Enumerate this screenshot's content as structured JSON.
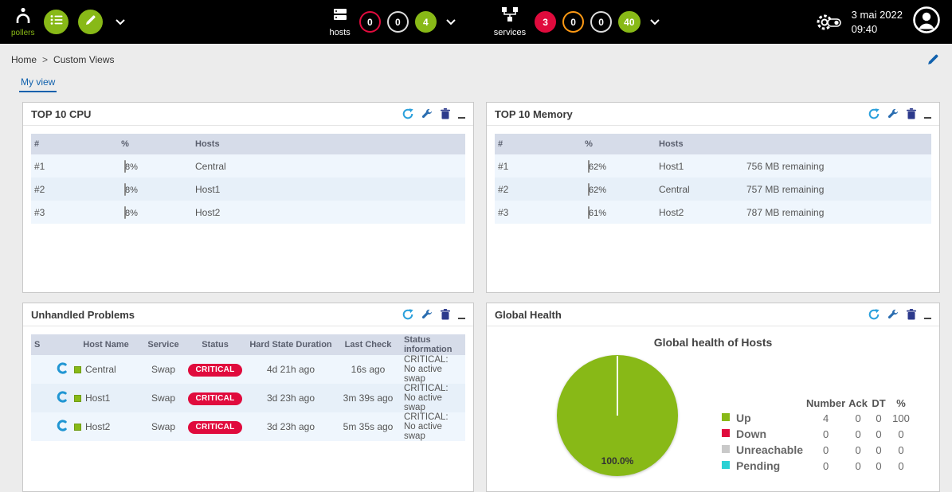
{
  "topbar": {
    "pollers": {
      "label": "pollers"
    },
    "hosts": {
      "label": "hosts",
      "badges": [
        {
          "value": "0",
          "state": "down"
        },
        {
          "value": "0",
          "state": "unreachable"
        },
        {
          "value": "4",
          "state": "up"
        }
      ]
    },
    "services": {
      "label": "services",
      "badges": [
        {
          "value": "3",
          "state": "critical"
        },
        {
          "value": "0",
          "state": "warning"
        },
        {
          "value": "0",
          "state": "unknown"
        },
        {
          "value": "40",
          "state": "ok"
        }
      ]
    },
    "clock": {
      "date": "3 mai 2022",
      "time": "09:40"
    }
  },
  "breadcrumb": {
    "home": "Home",
    "separator": ">",
    "current": "Custom Views"
  },
  "tabs": {
    "my_view": "My view"
  },
  "panels": {
    "top10cpu": {
      "title": "TOP 10 CPU",
      "columns": {
        "rank": "#",
        "percent": "%",
        "hosts": "Hosts"
      },
      "rows": [
        {
          "rank": "#1",
          "label": "8%",
          "value": 8,
          "host": "Central"
        },
        {
          "rank": "#2",
          "label": "8%",
          "value": 8,
          "host": "Host1"
        },
        {
          "rank": "#3",
          "label": "8%",
          "value": 8,
          "host": "Host2"
        }
      ]
    },
    "top10memory": {
      "title": "TOP 10 Memory",
      "columns": {
        "rank": "#",
        "percent": "%",
        "hosts": "Hosts"
      },
      "rows": [
        {
          "rank": "#1",
          "label": "62%",
          "value": 62,
          "host": "Host1",
          "remaining": "756 MB remaining"
        },
        {
          "rank": "#2",
          "label": "62%",
          "value": 62,
          "host": "Central",
          "remaining": "757 MB remaining"
        },
        {
          "rank": "#3",
          "label": "61%",
          "value": 61,
          "host": "Host2",
          "remaining": "787 MB remaining"
        }
      ]
    },
    "unhandled": {
      "title": "Unhandled Problems",
      "columns": {
        "s": "S",
        "host": "Host Name",
        "service": "Service",
        "status": "Status",
        "duration": "Hard State Duration",
        "last_check": "Last Check",
        "info": "Status information"
      },
      "rows": [
        {
          "host": "Central",
          "service": "Swap",
          "status": "CRITICAL",
          "duration": "4d 21h ago",
          "last_check": "16s ago",
          "info": "CRITICAL: No active swap"
        },
        {
          "host": "Host1",
          "service": "Swap",
          "status": "CRITICAL",
          "duration": "3d 23h ago",
          "last_check": "3m 39s ago",
          "info": "CRITICAL: No active swap"
        },
        {
          "host": "Host2",
          "service": "Swap",
          "status": "CRITICAL",
          "duration": "3d 23h ago",
          "last_check": "5m 35s ago",
          "info": "CRITICAL: No active swap"
        }
      ]
    },
    "globalhealth": {
      "title": "Global Health",
      "chart": {
        "type": "pie",
        "title": "Global health of Hosts",
        "slices": [
          {
            "label": "Up",
            "value": 100.0,
            "color": "#88B917"
          }
        ],
        "center_label": "100.0%"
      },
      "legend": {
        "headers": {
          "number": "Number",
          "ack": "Ack",
          "dt": "DT",
          "percent": "%"
        },
        "rows": [
          {
            "label": "Up",
            "color": "#88B917",
            "number": "4",
            "ack": "0",
            "dt": "0",
            "percent": "100"
          },
          {
            "label": "Down",
            "color": "#E00B3D",
            "number": "0",
            "ack": "0",
            "dt": "0",
            "percent": "0"
          },
          {
            "label": "Unreachable",
            "color": "#C9C9C9",
            "number": "0",
            "ack": "0",
            "dt": "0",
            "percent": "0"
          },
          {
            "label": "Pending",
            "color": "#2AD1D4",
            "number": "0",
            "ack": "0",
            "dt": "0",
            "percent": "0"
          }
        ]
      }
    }
  }
}
